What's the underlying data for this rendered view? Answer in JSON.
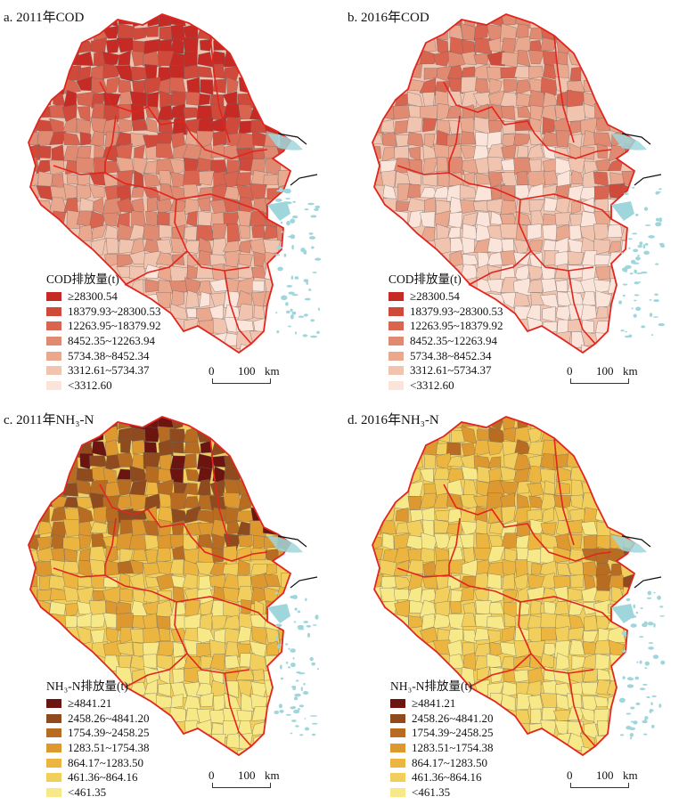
{
  "panels": [
    {
      "title": "a. 2011年COD",
      "legend_title": "COD排放量(t)",
      "classes": [
        "≥28300.54",
        "18379.93~28300.53",
        "12263.95~18379.92",
        "8452.35~12263.94",
        "5734.38~8452.34",
        "3312.61~5734.37",
        "<3312.60"
      ],
      "colors": [
        "#c62a24",
        "#cf4a3a",
        "#d9644f",
        "#e18a72",
        "#eaa88f",
        "#f1c4b0",
        "#fbe4d9"
      ]
    },
    {
      "title": "b. 2016年COD",
      "legend_title": "COD排放量(t)",
      "classes": [
        "≥28300.54",
        "18379.93~28300.53",
        "12263.95~18379.92",
        "8452.35~12263.94",
        "5734.38~8452.34",
        "3312.61~5734.37",
        "<3312.60"
      ],
      "colors": [
        "#c62a24",
        "#cf4a3a",
        "#d9644f",
        "#e18a72",
        "#eaa88f",
        "#f1c4b0",
        "#fbe4d9"
      ]
    },
    {
      "title": "c. 2011年NH₃-N",
      "legend_title": "NH₃-N排放量(t)",
      "classes": [
        "≥4841.21",
        "2458.26~4841.20",
        "1754.39~2458.25",
        "1283.51~1754.38",
        "864.17~1283.50",
        "461.36~864.16",
        "<461.35"
      ],
      "colors": [
        "#6b1410",
        "#8f4a1e",
        "#b86c22",
        "#dd9830",
        "#ebb540",
        "#f2cf5c",
        "#f7e888"
      ]
    },
    {
      "title": "d. 2016年NH₃-N",
      "legend_title": "NH₃-N排放量(t)",
      "classes": [
        "≥4841.21",
        "2458.26~4841.20",
        "1754.39~2458.25",
        "1283.51~1754.38",
        "864.17~1283.50",
        "461.36~864.16",
        "<461.35"
      ],
      "colors": [
        "#6b1410",
        "#8f4a1e",
        "#b86c22",
        "#dd9830",
        "#ebb540",
        "#f2cf5c",
        "#f7e888"
      ]
    }
  ],
  "scale": {
    "zero": "0",
    "hundred": "100",
    "unit": "km"
  },
  "province_border_color": "#e0261f",
  "county_border_color": "#555555",
  "coast_color": "#9fd6dc"
}
